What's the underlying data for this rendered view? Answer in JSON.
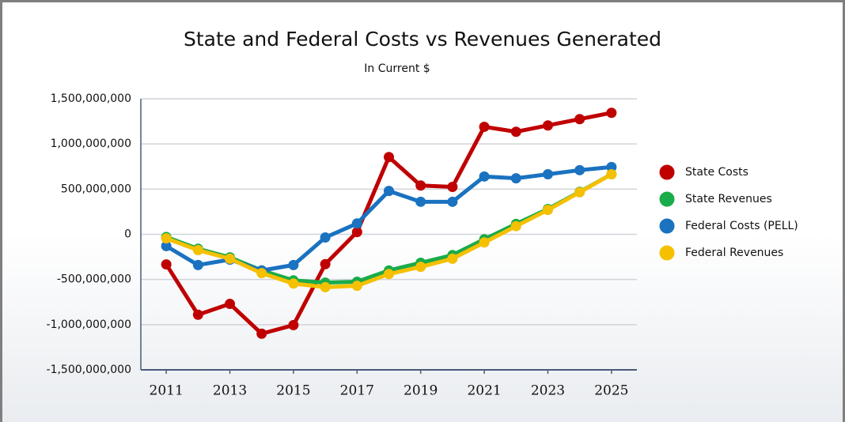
{
  "chart_data": {
    "type": "line",
    "title": "State and Federal Costs vs Revenues Generated",
    "subtitle": "In Current $",
    "x": [
      2011,
      2012,
      2013,
      2014,
      2015,
      2016,
      2017,
      2018,
      2019,
      2020,
      2021,
      2022,
      2023,
      2024,
      2025
    ],
    "xlim": [
      2010.2,
      2025.8
    ],
    "xticks": [
      2011,
      2013,
      2015,
      2017,
      2019,
      2021,
      2023,
      2025
    ],
    "ylim": [
      -1500000000,
      1500000000
    ],
    "yticks": [
      {
        "value": -1500000000,
        "label": "-1,500,000,000"
      },
      {
        "value": -1000000000,
        "label": "-1,000,000,000"
      },
      {
        "value": -500000000,
        "label": "-500,000,000"
      },
      0,
      {
        "value": 500000000,
        "label": "500,000,000"
      },
      {
        "value": 1000000000,
        "label": "1,000,000,000"
      },
      {
        "value": 1500000000,
        "label": "1,500,000,000"
      }
    ],
    "grid": true,
    "legend": "right",
    "series": [
      {
        "name": "State Costs",
        "color": "#c00000",
        "values": [
          -333000000,
          -890000000,
          -770000000,
          -1100000000,
          -1005000000,
          -330000000,
          25000000,
          855000000,
          540000000,
          525000000,
          1190000000,
          1135000000,
          1205000000,
          1275000000,
          1345000000
        ]
      },
      {
        "name": "State Revenues",
        "color": "#1aab4a",
        "values": [
          -30000000,
          -160000000,
          -255000000,
          -400000000,
          -510000000,
          -535000000,
          -525000000,
          -400000000,
          -315000000,
          -230000000,
          -55000000,
          115000000,
          280000000,
          470000000,
          665000000
        ]
      },
      {
        "name": "Federal Costs (PELL)",
        "color": "#1a72c0",
        "values": [
          -130000000,
          -340000000,
          -280000000,
          -400000000,
          -340000000,
          -35000000,
          120000000,
          480000000,
          360000000,
          360000000,
          640000000,
          620000000,
          665000000,
          710000000,
          745000000
        ]
      },
      {
        "name": "Federal Revenues",
        "color": "#f5c000",
        "values": [
          -45000000,
          -175000000,
          -270000000,
          -430000000,
          -545000000,
          -585000000,
          -570000000,
          -440000000,
          -360000000,
          -270000000,
          -90000000,
          90000000,
          270000000,
          465000000,
          665000000
        ]
      }
    ]
  }
}
